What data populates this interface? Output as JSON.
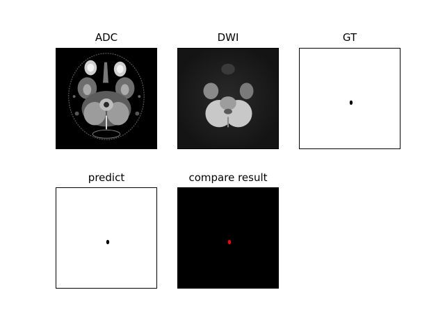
{
  "panels": [
    {
      "title": "ADC",
      "content": "adc-brain-slice"
    },
    {
      "title": "DWI",
      "content": "dwi-brain-slice"
    },
    {
      "title": "GT",
      "content": "ground-truth-mask"
    },
    {
      "title": "predict",
      "content": "predicted-mask"
    },
    {
      "title": "compare result",
      "content": "comparison-overlay"
    }
  ],
  "colors": {
    "background": "#ffffff",
    "lesion_mask": "#000000",
    "compare_background": "#000000",
    "compare_highlight": "#ff0000"
  }
}
